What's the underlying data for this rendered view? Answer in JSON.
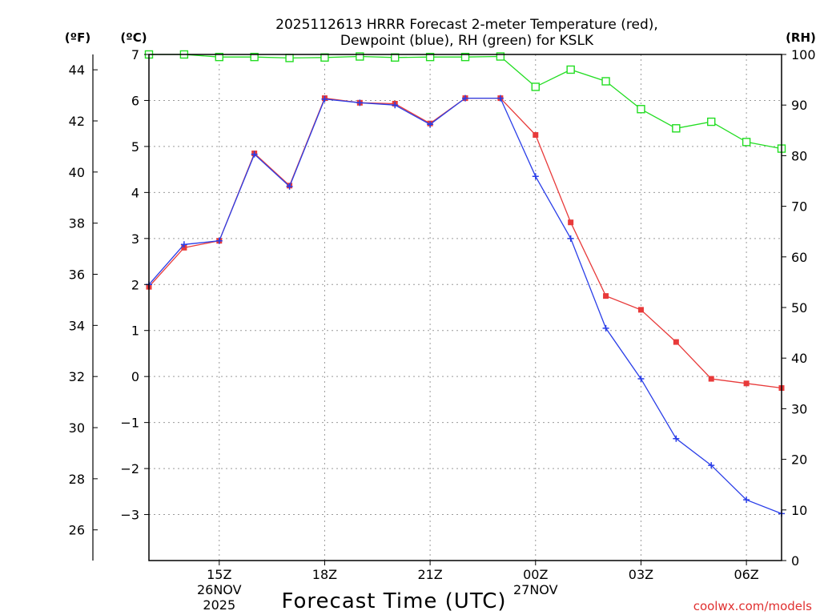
{
  "chart_data": {
    "type": "line",
    "title_line1": "2025112613 HRRR Forecast 2-meter Temperature (red),",
    "title_line2": "Dewpoint (blue), RH (green) for KSLK",
    "xlabel": "Forecast Time (UTC)",
    "watermark": "coolwx.com/models",
    "unit_labels": {
      "fahrenheit": "(ºF)",
      "celsius": "(ºC)",
      "rh": "(RH)"
    },
    "x_range_hours": [
      13,
      31
    ],
    "x_ticks": [
      {
        "hour": 15,
        "label": "15Z",
        "date1": "26NOV",
        "date2": "2025"
      },
      {
        "hour": 18,
        "label": "18Z"
      },
      {
        "hour": 21,
        "label": "21Z"
      },
      {
        "hour": 24,
        "label": "00Z",
        "date1": "27NOV"
      },
      {
        "hour": 27,
        "label": "03Z"
      },
      {
        "hour": 30,
        "label": "06Z"
      }
    ],
    "y_celsius_range": [
      -4.0,
      7.0
    ],
    "y_celsius_ticks": [
      7,
      6,
      5,
      4,
      3,
      2,
      1,
      0,
      -1,
      -2,
      -3
    ],
    "y_celsius_tick_labels": [
      "7",
      "6",
      "5",
      "4",
      "3",
      "2",
      "1",
      "0",
      "−1",
      "−2",
      "−3"
    ],
    "y_fahrenheit_ticks": [
      44,
      42,
      40,
      38,
      36,
      34,
      32,
      30,
      28,
      26
    ],
    "y_rh_range": [
      0,
      100
    ],
    "y_rh_ticks": [
      100,
      90,
      80,
      70,
      60,
      50,
      40,
      30,
      20,
      10,
      0
    ],
    "grid": true,
    "series": [
      {
        "name": "Temperature",
        "unit": "C",
        "color": "#e83a3a",
        "marker": "square",
        "x": [
          13,
          14,
          15,
          16,
          17,
          18,
          19,
          20,
          21,
          22,
          23,
          24,
          25,
          26,
          27,
          28,
          29,
          30,
          31
        ],
        "values": [
          1.95,
          2.8,
          2.95,
          4.85,
          4.15,
          6.05,
          5.95,
          5.93,
          5.5,
          6.05,
          6.05,
          5.25,
          3.35,
          1.75,
          1.45,
          0.75,
          -0.05,
          -0.15,
          -0.25
        ]
      },
      {
        "name": "Dewpoint",
        "unit": "C",
        "color": "#2a3ee8",
        "marker": "plus",
        "x": [
          13,
          14,
          15,
          16,
          17,
          18,
          19,
          20,
          21,
          22,
          23,
          24,
          25,
          26,
          27,
          28,
          29,
          30,
          31
        ],
        "values": [
          2.0,
          2.87,
          2.95,
          4.83,
          4.13,
          6.03,
          5.95,
          5.9,
          5.48,
          6.05,
          6.05,
          4.35,
          3.0,
          1.05,
          -0.05,
          -1.35,
          -1.93,
          -2.68,
          -2.98
        ]
      },
      {
        "name": "RH",
        "unit": "%",
        "color": "#22dd22",
        "marker": "square-open",
        "x": [
          13,
          14,
          15,
          16,
          17,
          18,
          19,
          20,
          21,
          22,
          23,
          24,
          25,
          26,
          27,
          28,
          29,
          30,
          31
        ],
        "values": [
          100,
          100,
          99.5,
          99.5,
          99.3,
          99.4,
          99.6,
          99.4,
          99.5,
          99.5,
          99.6,
          93.6,
          97.0,
          94.7,
          89.2,
          85.4,
          86.7,
          82.7,
          81.4
        ]
      }
    ]
  }
}
